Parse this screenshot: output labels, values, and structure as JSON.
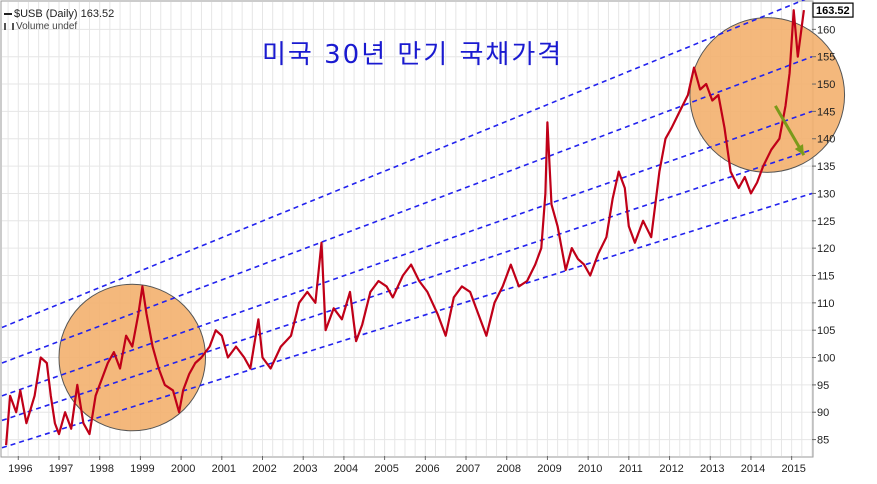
{
  "header": {
    "symbol_line": "$USB (Daily) 163.52",
    "volume_line": "Volume undef"
  },
  "colors": {
    "price_line": "#c00018",
    "channel_line": "#2222ee",
    "highlight_fill": "#f3b06e",
    "arrow": "#7a9a1a",
    "grid": "#e6e6e6"
  },
  "chart_data": {
    "type": "line",
    "title": "미국 30년 만기 국채가격",
    "xlabel": "",
    "ylabel": "",
    "ylim": [
      82,
      165
    ],
    "xlim": [
      1995.6,
      2015.5
    ],
    "grid": true,
    "y_axis_position": "right",
    "x_ticks": [
      "1996",
      "1997",
      "1998",
      "1999",
      "2000",
      "2001",
      "2002",
      "2003",
      "2004",
      "2005",
      "2006",
      "2007",
      "2008",
      "2009",
      "2010",
      "2011",
      "2012",
      "2013",
      "2014",
      "2015"
    ],
    "y_ticks": [
      85,
      90,
      95,
      100,
      105,
      110,
      115,
      120,
      125,
      130,
      135,
      140,
      145,
      150,
      155,
      160
    ],
    "last_value_label": "163.52",
    "series": [
      {
        "values": [
          [
            1995.7,
            84
          ],
          [
            1995.8,
            93
          ],
          [
            1995.95,
            90
          ],
          [
            1996.05,
            94
          ],
          [
            1996.2,
            88
          ],
          [
            1996.4,
            93
          ],
          [
            1996.55,
            100
          ],
          [
            1996.7,
            99
          ],
          [
            1996.8,
            93
          ],
          [
            1996.9,
            88
          ],
          [
            1997.0,
            86
          ],
          [
            1997.15,
            90
          ],
          [
            1997.3,
            87
          ],
          [
            1997.45,
            95
          ],
          [
            1997.6,
            88
          ],
          [
            1997.75,
            86
          ],
          [
            1997.9,
            93
          ],
          [
            1998.05,
            96
          ],
          [
            1998.2,
            99
          ],
          [
            1998.35,
            101
          ],
          [
            1998.5,
            98
          ],
          [
            1998.65,
            104
          ],
          [
            1998.8,
            102
          ],
          [
            1998.95,
            108
          ],
          [
            1999.05,
            113
          ],
          [
            1999.15,
            108
          ],
          [
            1999.3,
            102
          ],
          [
            1999.45,
            98
          ],
          [
            1999.6,
            95
          ],
          [
            1999.8,
            94
          ],
          [
            1999.95,
            90
          ],
          [
            2000.05,
            94
          ],
          [
            2000.2,
            97
          ],
          [
            2000.35,
            99
          ],
          [
            2000.5,
            100
          ],
          [
            2000.7,
            102
          ],
          [
            2000.85,
            105
          ],
          [
            2001.0,
            104
          ],
          [
            2001.15,
            100
          ],
          [
            2001.35,
            102
          ],
          [
            2001.55,
            100
          ],
          [
            2001.7,
            98
          ],
          [
            2001.9,
            107
          ],
          [
            2002.0,
            100
          ],
          [
            2002.2,
            98
          ],
          [
            2002.45,
            102
          ],
          [
            2002.7,
            104
          ],
          [
            2002.9,
            110
          ],
          [
            2003.1,
            112
          ],
          [
            2003.3,
            110
          ],
          [
            2003.45,
            121
          ],
          [
            2003.55,
            105
          ],
          [
            2003.75,
            109
          ],
          [
            2003.95,
            107
          ],
          [
            2004.15,
            112
          ],
          [
            2004.3,
            103
          ],
          [
            2004.45,
            106
          ],
          [
            2004.65,
            112
          ],
          [
            2004.85,
            114
          ],
          [
            2005.05,
            113
          ],
          [
            2005.2,
            111
          ],
          [
            2005.45,
            115
          ],
          [
            2005.65,
            117
          ],
          [
            2005.85,
            114
          ],
          [
            2006.05,
            112
          ],
          [
            2006.3,
            108
          ],
          [
            2006.5,
            104
          ],
          [
            2006.7,
            111
          ],
          [
            2006.9,
            113
          ],
          [
            2007.1,
            112
          ],
          [
            2007.3,
            108
          ],
          [
            2007.5,
            104
          ],
          [
            2007.7,
            110
          ],
          [
            2007.9,
            113
          ],
          [
            2008.1,
            117
          ],
          [
            2008.3,
            113
          ],
          [
            2008.5,
            114
          ],
          [
            2008.7,
            117
          ],
          [
            2008.85,
            120
          ],
          [
            2008.95,
            130
          ],
          [
            2009.0,
            143
          ],
          [
            2009.1,
            128
          ],
          [
            2009.25,
            124
          ],
          [
            2009.45,
            116
          ],
          [
            2009.6,
            120
          ],
          [
            2009.75,
            118
          ],
          [
            2009.9,
            117
          ],
          [
            2010.05,
            115
          ],
          [
            2010.25,
            119
          ],
          [
            2010.45,
            122
          ],
          [
            2010.6,
            129
          ],
          [
            2010.75,
            134
          ],
          [
            2010.9,
            131
          ],
          [
            2011.0,
            124
          ],
          [
            2011.15,
            121
          ],
          [
            2011.35,
            125
          ],
          [
            2011.55,
            122
          ],
          [
            2011.75,
            134
          ],
          [
            2011.9,
            140
          ],
          [
            2012.05,
            142
          ],
          [
            2012.25,
            145
          ],
          [
            2012.45,
            148
          ],
          [
            2012.6,
            153
          ],
          [
            2012.75,
            149
          ],
          [
            2012.9,
            150
          ],
          [
            2013.05,
            147
          ],
          [
            2013.2,
            148
          ],
          [
            2013.35,
            142
          ],
          [
            2013.5,
            134
          ],
          [
            2013.7,
            131
          ],
          [
            2013.85,
            133
          ],
          [
            2014.0,
            130
          ],
          [
            2014.15,
            132
          ],
          [
            2014.3,
            135
          ],
          [
            2014.5,
            138
          ],
          [
            2014.7,
            140
          ],
          [
            2014.85,
            146
          ],
          [
            2014.95,
            152
          ],
          [
            2015.05,
            163.5
          ],
          [
            2015.15,
            155
          ],
          [
            2015.3,
            163.52
          ]
        ]
      }
    ],
    "channel_lines": [
      {
        "from": [
          1995.6,
          105.5
        ],
        "to": [
          2015.5,
          166
        ]
      },
      {
        "from": [
          1995.6,
          99
        ],
        "to": [
          2015.5,
          155
        ]
      },
      {
        "from": [
          1995.6,
          93
        ],
        "to": [
          2015.5,
          145
        ]
      },
      {
        "from": [
          1995.6,
          88.5
        ],
        "to": [
          2015.5,
          138
        ]
      },
      {
        "from": [
          1995.6,
          83.5
        ],
        "to": [
          2015.5,
          130
        ]
      }
    ],
    "highlight_circles": [
      {
        "center": [
          1998.8,
          100
        ],
        "radius_years": 1.8
      },
      {
        "center": [
          2014.4,
          148
        ],
        "radius_years": 1.9
      }
    ],
    "arrow": {
      "from": [
        2014.6,
        146
      ],
      "to": [
        2015.3,
        137
      ]
    }
  }
}
